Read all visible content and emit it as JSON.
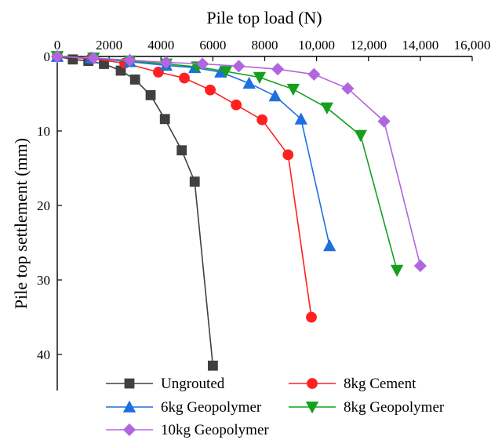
{
  "chart_data": {
    "type": "line",
    "xlabel": "Pile top load (N)",
    "ylabel": "Pile top settlement (mm)",
    "xlim": [
      0,
      16000
    ],
    "ylim": [
      0,
      45
    ],
    "y_reversed": true,
    "x_axis_position": "top",
    "grid": false,
    "legend_position": "bottom-center",
    "x_ticks": [
      {
        "value": 0,
        "label": "0"
      },
      {
        "value": 2000,
        "label": "2000"
      },
      {
        "value": 4000,
        "label": "4000"
      },
      {
        "value": 6000,
        "label": "6000"
      },
      {
        "value": 8000,
        "label": "8000"
      },
      {
        "value": 10000,
        "label": "10,000"
      },
      {
        "value": 12000,
        "label": "12,000"
      },
      {
        "value": 14000,
        "label": "14,000"
      },
      {
        "value": 16000,
        "label": "16,000"
      }
    ],
    "y_ticks": [
      {
        "value": 0,
        "label": "0"
      },
      {
        "value": 10,
        "label": "10"
      },
      {
        "value": 20,
        "label": "20"
      },
      {
        "value": 30,
        "label": "30"
      },
      {
        "value": 40,
        "label": "40"
      }
    ],
    "series": [
      {
        "name": "Ungrouted",
        "color": "#404040",
        "marker": "square",
        "points": [
          [
            0,
            0
          ],
          [
            600,
            0.4
          ],
          [
            1200,
            0.6
          ],
          [
            1800,
            1.0
          ],
          [
            2450,
            1.9
          ],
          [
            3000,
            3.1
          ],
          [
            3600,
            5.2
          ],
          [
            4150,
            8.4
          ],
          [
            4800,
            12.6
          ],
          [
            5300,
            16.8
          ],
          [
            6000,
            41.5
          ]
        ]
      },
      {
        "name": "8kg Cement",
        "color": "#ff2020",
        "marker": "circle",
        "points": [
          [
            0,
            0
          ],
          [
            1300,
            0.3
          ],
          [
            2600,
            0.9
          ],
          [
            3900,
            2.1
          ],
          [
            4900,
            2.9
          ],
          [
            5900,
            4.5
          ],
          [
            6900,
            6.5
          ],
          [
            7900,
            8.5
          ],
          [
            8900,
            13.2
          ],
          [
            9800,
            35.0
          ]
        ]
      },
      {
        "name": "6kg Geopolymer",
        "color": "#1f6fe0",
        "marker": "triangle-up",
        "points": [
          [
            0,
            0
          ],
          [
            1300,
            0.2
          ],
          [
            2800,
            0.7
          ],
          [
            4200,
            1.2
          ],
          [
            5300,
            1.5
          ],
          [
            6300,
            2.1
          ],
          [
            7400,
            3.6
          ],
          [
            8400,
            5.3
          ],
          [
            9400,
            8.4
          ],
          [
            10500,
            25.4
          ]
        ]
      },
      {
        "name": "8kg Geopolymer",
        "color": "#14a01e",
        "marker": "triangle-down",
        "points": [
          [
            0,
            0
          ],
          [
            1400,
            0.2
          ],
          [
            2800,
            0.6
          ],
          [
            4200,
            1.0
          ],
          [
            5400,
            1.4
          ],
          [
            6500,
            2.0
          ],
          [
            7800,
            2.8
          ],
          [
            9100,
            4.4
          ],
          [
            10400,
            6.9
          ],
          [
            11700,
            10.6
          ],
          [
            13100,
            28.7
          ]
        ]
      },
      {
        "name": "10kg Geopolymer",
        "color": "#b066e0",
        "marker": "diamond",
        "points": [
          [
            0,
            0
          ],
          [
            1400,
            0.2
          ],
          [
            2800,
            0.5
          ],
          [
            4200,
            0.8
          ],
          [
            5600,
            1.0
          ],
          [
            7000,
            1.3
          ],
          [
            8500,
            1.7
          ],
          [
            9900,
            2.4
          ],
          [
            11200,
            4.3
          ],
          [
            12600,
            8.7
          ],
          [
            14000,
            28.1
          ]
        ]
      }
    ]
  }
}
